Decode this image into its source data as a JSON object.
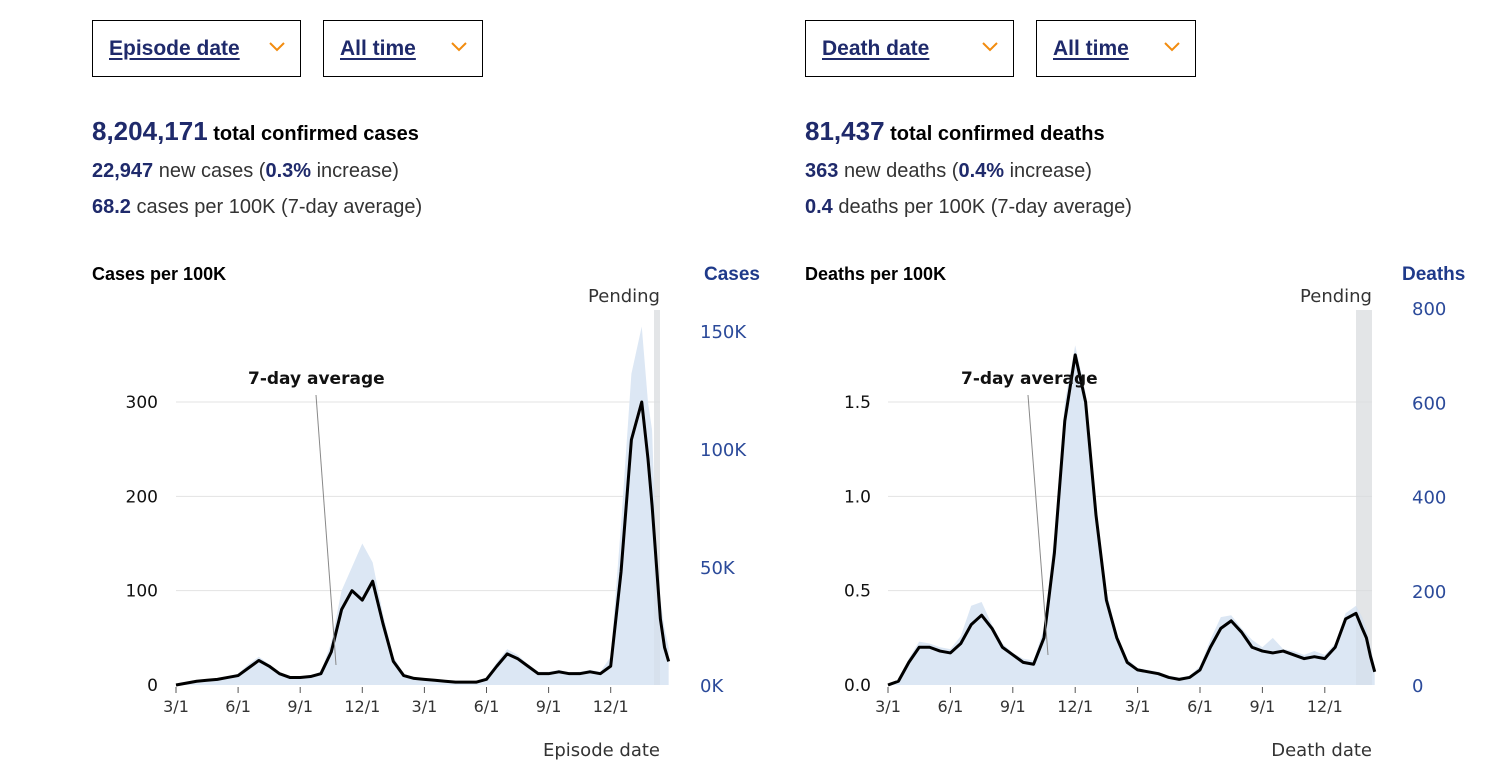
{
  "cases": {
    "date_dropdown": {
      "label": "Episode date",
      "icon": "chevron-down-icon"
    },
    "range_dropdown": {
      "label": "All time",
      "icon": "chevron-down-icon"
    },
    "total": {
      "value": "8,204,171",
      "label": "total confirmed cases"
    },
    "new": {
      "value": "22,947",
      "pre": "new cases (",
      "pct": "0.3%",
      "post": " increase)"
    },
    "rate": {
      "value": "68.2",
      "label": "cases per 100K (7-day average)"
    }
  },
  "deaths": {
    "date_dropdown": {
      "label": "Death date",
      "icon": "chevron-down-icon"
    },
    "range_dropdown": {
      "label": "All time",
      "icon": "chevron-down-icon"
    },
    "total": {
      "value": "81,437",
      "label": "total confirmed deaths"
    },
    "new": {
      "value": "363",
      "pre": "new deaths (",
      "pct": "0.4%",
      "post": " increase)"
    },
    "rate": {
      "value": "0.4",
      "label": "deaths per 100K (7-day average)"
    }
  },
  "colors": {
    "accent": "#1f2a6b",
    "chevron": "#f28c0f",
    "fill": "#dce7f4",
    "line": "#000000",
    "right_axis": "#2b4a9a",
    "pending": "#ececec"
  },
  "chart_data": [
    {
      "type": "area",
      "title": "Cases per 100K",
      "ylabel_right": "Cases",
      "xlabel": "Episode date",
      "pending_label": "Pending",
      "annotation": "7-day average",
      "x_ticks": [
        "3/1",
        "6/1",
        "9/1",
        "12/1",
        "3/1",
        "6/1",
        "9/1",
        "12/1"
      ],
      "y_ticks_left": [
        "0",
        "100",
        "200",
        "300"
      ],
      "y_ticks_right": [
        "0K",
        "50K",
        "100K",
        "150K"
      ],
      "ylim_left": [
        0,
        300
      ],
      "ylim_right": [
        0,
        150000
      ],
      "grid": true,
      "x_months": [
        0,
        0.5,
        1,
        1.5,
        2,
        2.5,
        3,
        3.5,
        4,
        4.5,
        5,
        5.5,
        6,
        6.5,
        7,
        7.5,
        8,
        8.5,
        9,
        9.5,
        10,
        10.5,
        11,
        11.5,
        12,
        12.5,
        13,
        13.5,
        14,
        14.5,
        15,
        15.5,
        16,
        16.5,
        17,
        17.5,
        18,
        18.5,
        19,
        19.5,
        20,
        20.5,
        21,
        21.5,
        22,
        22.5,
        22.8,
        23,
        23.2,
        23.4,
        23.6,
        23.8
      ],
      "series": [
        {
          "name": "7-day average",
          "values": [
            0,
            2,
            4,
            5,
            6,
            8,
            10,
            18,
            26,
            20,
            12,
            8,
            8,
            9,
            12,
            35,
            80,
            100,
            90,
            110,
            65,
            25,
            10,
            7,
            6,
            5,
            4,
            3,
            3,
            3,
            6,
            20,
            33,
            28,
            20,
            12,
            12,
            14,
            12,
            12,
            14,
            12,
            20,
            120,
            260,
            300,
            240,
            190,
            130,
            70,
            40,
            25
          ]
        },
        {
          "name": "Daily",
          "values": [
            0,
            2,
            5,
            6,
            7,
            9,
            12,
            22,
            30,
            22,
            13,
            9,
            9,
            10,
            14,
            45,
            100,
            125,
            150,
            130,
            75,
            30,
            12,
            8,
            7,
            6,
            5,
            3,
            3,
            4,
            8,
            24,
            38,
            32,
            22,
            14,
            14,
            16,
            13,
            14,
            16,
            14,
            30,
            170,
            330,
            380,
            300,
            270,
            140,
            90,
            60,
            40
          ]
        }
      ],
      "pending_from_month": 23.7
    },
    {
      "type": "area",
      "title": "Deaths per 100K",
      "ylabel_right": "Deaths",
      "xlabel": "Death date",
      "pending_label": "Pending",
      "annotation": "7-day average",
      "x_ticks": [
        "3/1",
        "6/1",
        "9/1",
        "12/1",
        "3/1",
        "6/1",
        "9/1",
        "12/1"
      ],
      "y_ticks_left": [
        "0.0",
        "0.5",
        "1.0",
        "1.5"
      ],
      "y_ticks_right": [
        "0",
        "200",
        "400",
        "600",
        "800"
      ],
      "ylim_left": [
        0,
        2.0
      ],
      "ylim_right": [
        0,
        800
      ],
      "grid": true,
      "x_months": [
        0,
        0.5,
        1,
        1.5,
        2,
        2.5,
        3,
        3.5,
        4,
        4.5,
        5,
        5.5,
        6,
        6.5,
        7,
        7.5,
        8,
        8.5,
        9,
        9.5,
        10,
        10.5,
        11,
        11.5,
        12,
        12.5,
        13,
        13.5,
        14,
        14.5,
        15,
        15.5,
        16,
        16.5,
        17,
        17.5,
        18,
        18.5,
        19,
        19.5,
        20,
        20.5,
        21,
        21.5,
        22,
        22.5,
        22.8,
        23,
        23.2,
        23.4
      ],
      "series": [
        {
          "name": "7-day average",
          "values": [
            0,
            0.02,
            0.12,
            0.2,
            0.2,
            0.18,
            0.17,
            0.22,
            0.32,
            0.37,
            0.3,
            0.2,
            0.16,
            0.12,
            0.11,
            0.25,
            0.7,
            1.4,
            1.75,
            1.5,
            0.9,
            0.45,
            0.25,
            0.12,
            0.08,
            0.07,
            0.06,
            0.04,
            0.03,
            0.04,
            0.08,
            0.2,
            0.3,
            0.34,
            0.28,
            0.2,
            0.18,
            0.17,
            0.18,
            0.16,
            0.14,
            0.15,
            0.14,
            0.2,
            0.35,
            0.38,
            0.3,
            0.25,
            0.15,
            0.07
          ]
        },
        {
          "name": "Daily",
          "values": [
            0,
            0.02,
            0.14,
            0.23,
            0.22,
            0.2,
            0.19,
            0.26,
            0.42,
            0.44,
            0.32,
            0.22,
            0.17,
            0.14,
            0.13,
            0.3,
            0.8,
            1.5,
            1.8,
            1.55,
            0.95,
            0.5,
            0.27,
            0.14,
            0.09,
            0.08,
            0.07,
            0.05,
            0.04,
            0.05,
            0.1,
            0.24,
            0.36,
            0.37,
            0.3,
            0.24,
            0.2,
            0.25,
            0.19,
            0.18,
            0.16,
            0.18,
            0.16,
            0.22,
            0.38,
            0.42,
            0.36,
            0.3,
            0.2,
            0.1
          ]
        }
      ],
      "pending_from_month": 22.6
    }
  ]
}
